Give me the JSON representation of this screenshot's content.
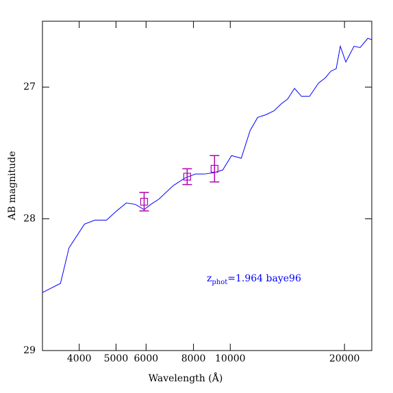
{
  "chart_data": {
    "type": "line",
    "xlabel": "Wavelength (Å)",
    "ylabel": "AB magnitude",
    "xscale": "log",
    "xlim": [
      3200,
      23600
    ],
    "xticks": [
      4000,
      5000,
      6000,
      8000,
      10000,
      20000
    ],
    "ylim": [
      29,
      26.5
    ],
    "yticks": [
      27,
      28,
      29
    ],
    "line": {
      "color": "#0000ff",
      "x": [
        3200,
        3570,
        3760,
        4130,
        4400,
        4720,
        5020,
        5320,
        5620,
        5930,
        6180,
        6490,
        7060,
        7600,
        8090,
        8540,
        9050,
        9550,
        10080,
        10690,
        11280,
        11810,
        12410,
        13040,
        13590,
        14170,
        14770,
        15400,
        16180,
        17080,
        17800,
        18400,
        19020,
        19500,
        20160,
        21190,
        21990,
        23030,
        23600
      ],
      "values": [
        28.56,
        28.49,
        28.22,
        28.04,
        28.01,
        28.01,
        27.94,
        27.88,
        27.89,
        27.93,
        27.89,
        27.85,
        27.75,
        27.69,
        27.66,
        27.66,
        27.65,
        27.63,
        27.52,
        27.54,
        27.33,
        27.23,
        27.21,
        27.18,
        27.13,
        27.09,
        27.01,
        27.07,
        27.07,
        26.97,
        26.93,
        26.88,
        26.86,
        26.69,
        26.81,
        26.69,
        26.7,
        26.63,
        26.64
      ]
    },
    "points": {
      "color": "#b000b0",
      "x": [
        5930,
        7700,
        9090
      ],
      "values": [
        27.87,
        27.68,
        27.62
      ],
      "errors": [
        0.07,
        0.06,
        0.1
      ]
    },
    "annotation": {
      "color": "#0000ff",
      "base": "z",
      "sub": "phot",
      "text": "=1.964 baye96"
    }
  }
}
